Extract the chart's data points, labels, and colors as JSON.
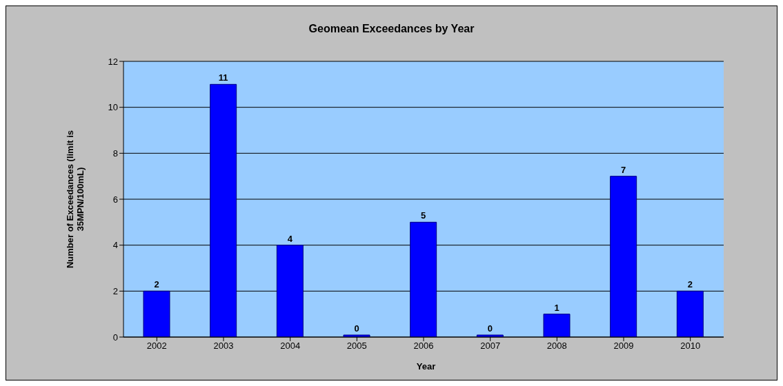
{
  "chart_data": {
    "type": "bar",
    "title": "Geomean Exceedances by Year",
    "xlabel": "Year",
    "ylabel": "Number of Exceedances (limit is 35MPN/100mL)",
    "categories": [
      "2002",
      "2003",
      "2004",
      "2005",
      "2006",
      "2007",
      "2008",
      "2009",
      "2010"
    ],
    "values": [
      2,
      11,
      4,
      0,
      5,
      0,
      1,
      7,
      2
    ],
    "color": "#0000ff",
    "ylim": [
      0,
      12
    ],
    "yticks": [
      0,
      2,
      4,
      6,
      8,
      10,
      12
    ],
    "grid": "y",
    "data_labels": true
  }
}
